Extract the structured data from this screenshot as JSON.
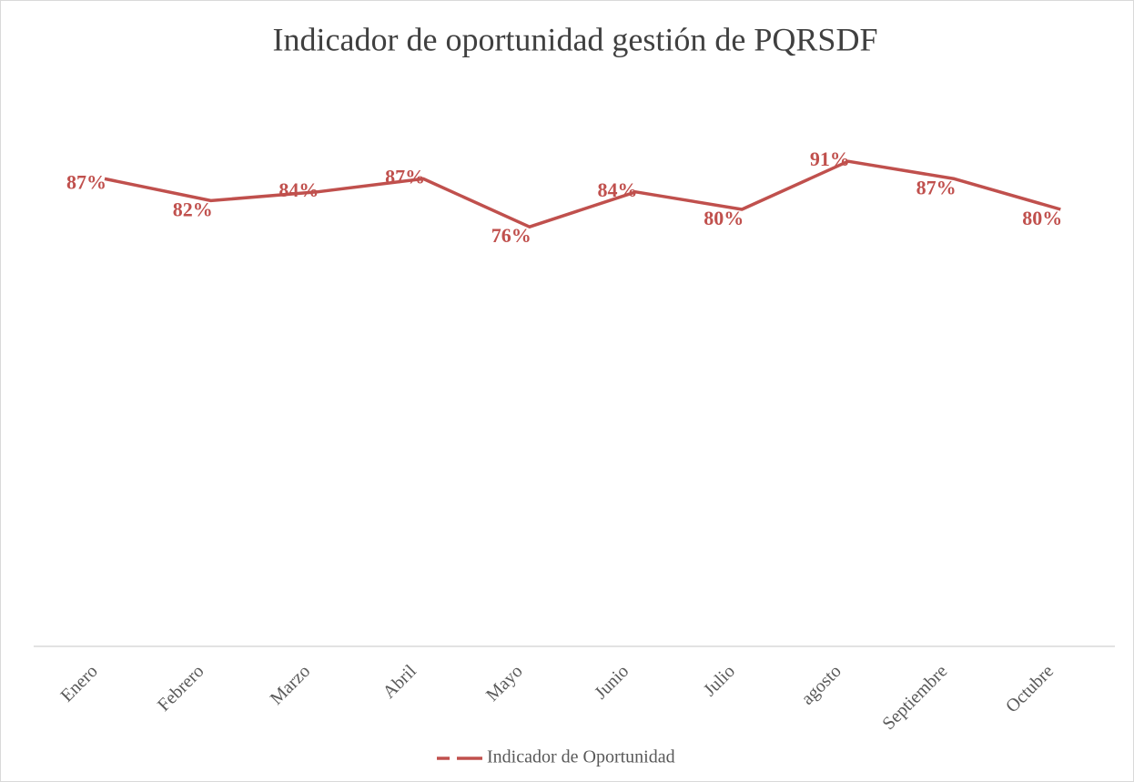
{
  "chart_data": {
    "type": "line",
    "title": "Indicador de oportunidad gestión de PQRSDF",
    "categories": [
      "Enero",
      "Febrero",
      "Marzo",
      "Abril",
      "Mayo",
      "Junio",
      "Julio",
      "agosto",
      "Septiembre",
      "Octubre"
    ],
    "series": [
      {
        "name": "Indicador de Oportunidad",
        "color": "#c0504d",
        "values": [
          87,
          82,
          84,
          87,
          76,
          84,
          80,
          91,
          87,
          80
        ],
        "value_labels": [
          "87%",
          "82%",
          "84%",
          "87%",
          "76%",
          "84%",
          "80%",
          "91%",
          "87%",
          "80%"
        ]
      }
    ],
    "ylim": [
      -20,
      100
    ],
    "legend": "bottom"
  }
}
